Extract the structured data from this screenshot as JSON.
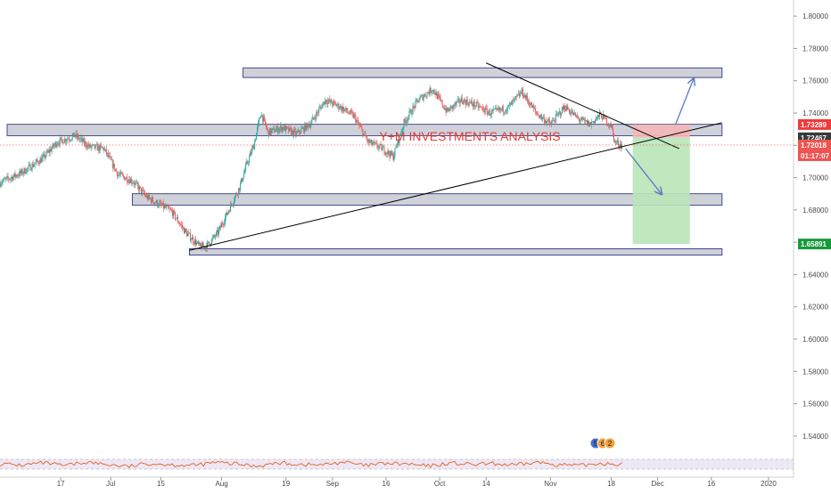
{
  "chart_data": {
    "type": "candlestick",
    "title": "",
    "annotation": "Y+M INVESTMENTS ANALYSIS",
    "ylim": [
      1.53,
      1.81
    ],
    "x_range": [
      "2019-05-31",
      "2020-01-08"
    ],
    "y_ticks": [
      "1.80000",
      "1.78000",
      "1.76000",
      "1.74000",
      "1.72000",
      "1.70000",
      "1.68000",
      "1.66000",
      "1.64000",
      "1.62000",
      "1.60000",
      "1.58000",
      "1.56000",
      "1.54000"
    ],
    "x_ticks": [
      {
        "label": "17",
        "date": "2019-06-17"
      },
      {
        "label": "Jul",
        "date": "2019-07-01"
      },
      {
        "label": "15",
        "date": "2019-07-15"
      },
      {
        "label": "Aug",
        "date": "2019-08-01"
      },
      {
        "label": "19",
        "date": "2019-08-19"
      },
      {
        "label": "Sep",
        "date": "2019-09-01"
      },
      {
        "label": "16",
        "date": "2019-09-16"
      },
      {
        "label": "Oct",
        "date": "2019-10-01"
      },
      {
        "label": "14",
        "date": "2019-10-14"
      },
      {
        "label": "Nov",
        "date": "2019-11-01"
      },
      {
        "label": "18",
        "date": "2019-11-18"
      },
      {
        "label": "Dec",
        "date": "2019-12-01"
      },
      {
        "label": "16",
        "date": "2019-12-16"
      },
      {
        "label": "2020",
        "date": "2020-01-01"
      }
    ],
    "price_path": [
      [
        "2019-05-31",
        1.697
      ],
      [
        "2019-06-06",
        1.703
      ],
      [
        "2019-06-12",
        1.712
      ],
      [
        "2019-06-16",
        1.722
      ],
      [
        "2019-06-21",
        1.726
      ],
      [
        "2019-06-25",
        1.719
      ],
      [
        "2019-06-29",
        1.718
      ],
      [
        "2019-07-03",
        1.702
      ],
      [
        "2019-07-07",
        1.698
      ],
      [
        "2019-07-11",
        1.688
      ],
      [
        "2019-07-14",
        1.684
      ],
      [
        "2019-07-18",
        1.679
      ],
      [
        "2019-07-22",
        1.666
      ],
      [
        "2019-07-26",
        1.657
      ],
      [
        "2019-07-28",
        1.658
      ],
      [
        "2019-07-31",
        1.666
      ],
      [
        "2019-08-03",
        1.68
      ],
      [
        "2019-08-06",
        1.694
      ],
      [
        "2019-08-08",
        1.708
      ],
      [
        "2019-08-10",
        1.72
      ],
      [
        "2019-08-12",
        1.74
      ],
      [
        "2019-08-14",
        1.728
      ],
      [
        "2019-08-18",
        1.731
      ],
      [
        "2019-08-22",
        1.727
      ],
      [
        "2019-08-26",
        1.734
      ],
      [
        "2019-08-30",
        1.748
      ],
      [
        "2019-09-03",
        1.744
      ],
      [
        "2019-09-07",
        1.738
      ],
      [
        "2019-09-11",
        1.722
      ],
      [
        "2019-09-15",
        1.718
      ],
      [
        "2019-09-18",
        1.713
      ],
      [
        "2019-09-21",
        1.734
      ],
      [
        "2019-09-25",
        1.748
      ],
      [
        "2019-09-29",
        1.755
      ],
      [
        "2019-10-03",
        1.741
      ],
      [
        "2019-10-07",
        1.748
      ],
      [
        "2019-10-11",
        1.745
      ],
      [
        "2019-10-15",
        1.74
      ],
      [
        "2019-10-20",
        1.743
      ],
      [
        "2019-10-24",
        1.753
      ],
      [
        "2019-10-28",
        1.74
      ],
      [
        "2019-11-01",
        1.733
      ],
      [
        "2019-11-05",
        1.744
      ],
      [
        "2019-11-09",
        1.736
      ],
      [
        "2019-11-12",
        1.733
      ],
      [
        "2019-11-15",
        1.739
      ],
      [
        "2019-11-18",
        1.732
      ],
      [
        "2019-11-19",
        1.722
      ],
      [
        "2019-11-21",
        1.72
      ]
    ],
    "zones": [
      {
        "from": "2019-08-07",
        "to": "2019-12-19",
        "y_top": 1.768,
        "y_bottom": 1.762
      },
      {
        "from": "2019-06-02",
        "to": "2019-12-19",
        "y_top": 1.733,
        "y_bottom": 1.726
      },
      {
        "from": "2019-07-07",
        "to": "2019-12-19",
        "y_top": 1.69,
        "y_bottom": 1.683
      },
      {
        "from": "2019-07-23",
        "to": "2019-12-19",
        "y_top": 1.656,
        "y_bottom": 1.652
      }
    ],
    "trendlines": [
      {
        "from": [
          "2019-10-14",
          1.771
        ],
        "to": [
          "2019-12-07",
          1.718
        ]
      },
      {
        "from": [
          "2019-07-23",
          1.655
        ],
        "to": [
          "2019-12-19",
          1.734
        ]
      }
    ],
    "position": {
      "from": "2019-11-24",
      "to": "2019-12-10",
      "entry": 1.72467,
      "stop": 1.73289,
      "target": 1.65891
    },
    "arrows": [
      {
        "from": [
          "2019-12-06",
          1.733
        ],
        "to": [
          "2019-12-11",
          1.761
        ]
      },
      {
        "from": [
          "2019-11-22",
          1.718
        ],
        "to": [
          "2019-12-02",
          1.69
        ]
      }
    ],
    "current_price_line": 1.72018,
    "price_tags": [
      {
        "label": "1.73289",
        "value": 1.73289,
        "color": "#ef3b3b"
      },
      {
        "label": "1.72467",
        "value": 1.72467,
        "color": "#3a3a3a"
      },
      {
        "label": "1.72018",
        "value": 1.72018,
        "color": "#ef5350"
      },
      {
        "label": "01:17:07",
        "value": 1.71358,
        "color": "#ef5350"
      },
      {
        "label": "1.65891",
        "value": 1.65891,
        "color": "#169b3a"
      }
    ],
    "oscillator_level": [
      0.52,
      0.44,
      0.58,
      0.4,
      0.62,
      0.48,
      0.36,
      0.55,
      0.47,
      0.42,
      0.6,
      0.51,
      0.39,
      0.57,
      0.49,
      0.45,
      0.63,
      0.41,
      0.54,
      0.5,
      0.38,
      0.58,
      0.46,
      0.53,
      0.43,
      0.61,
      0.48,
      0.4,
      0.56,
      0.5
    ],
    "event_badges": [
      "5",
      "6",
      "2"
    ],
    "colors": {
      "up": "#26a69a",
      "down": "#ef5350",
      "zone_fill": "#c7c9d1",
      "zone_stroke": "#1a237e",
      "trendline": "#000000",
      "arrow": "#5b7bc4",
      "stop_fill": "#f4b6b6",
      "target_fill": "#b8e6b8",
      "oscillator": "#e65100",
      "oscillator_band": "#ede7f6"
    }
  }
}
